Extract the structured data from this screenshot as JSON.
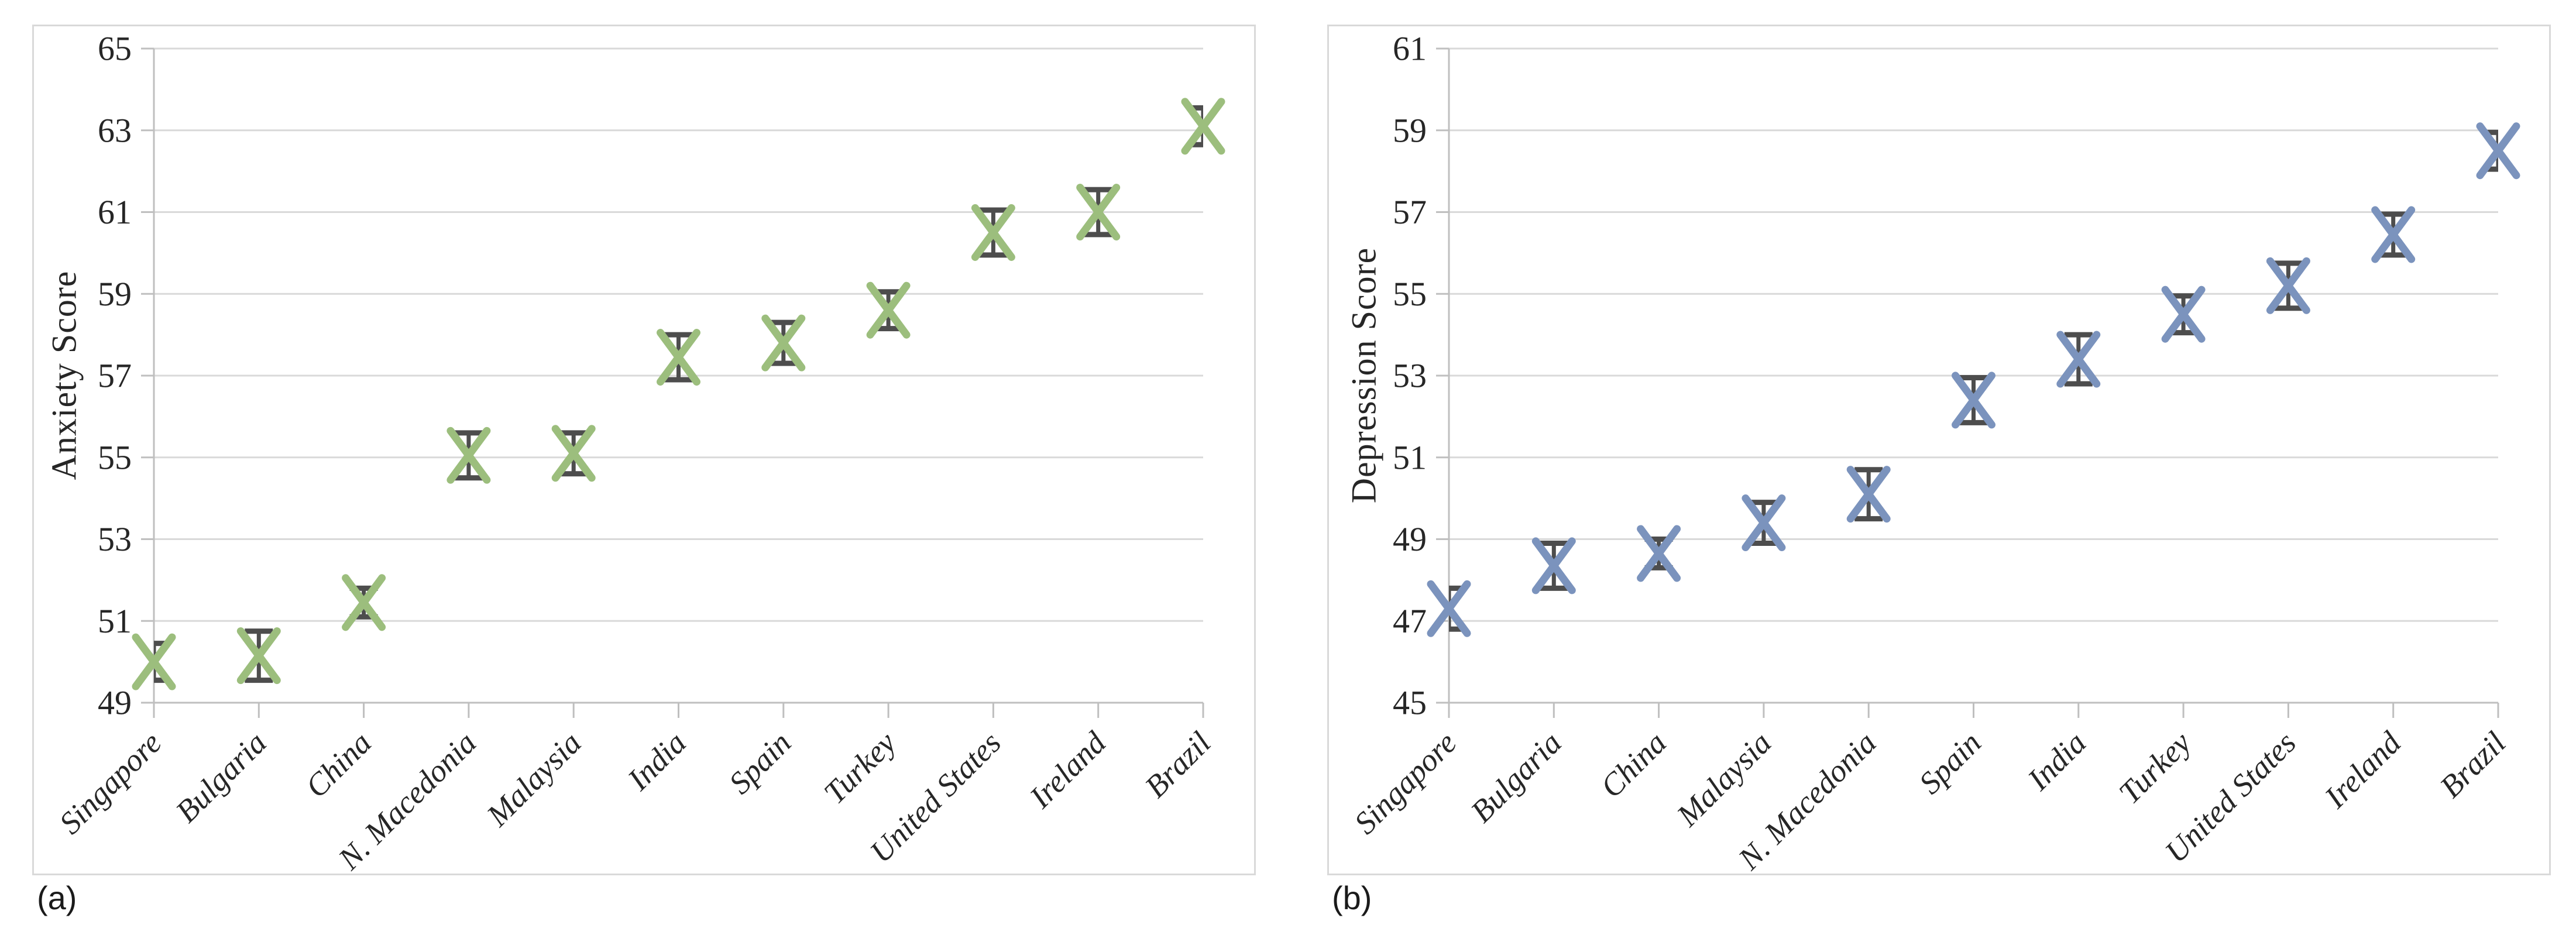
{
  "figure": {
    "panels": [
      {
        "caption": "(a)"
      },
      {
        "caption": "(b)"
      }
    ]
  },
  "chart_data": [
    {
      "type": "scatter",
      "panel": "a",
      "title": "",
      "xlabel": "",
      "ylabel": "Anxiety Score",
      "ylim": [
        49,
        65
      ],
      "ytick_step": 2,
      "grid": true,
      "legend_position": "none",
      "marker": "x-with-error-bars",
      "marker_color": "#9CBE7D",
      "error_color": "#4D4D4D",
      "categories": [
        "Singapore",
        "Bulgaria",
        "China",
        "N. Macedonia",
        "Malaysia",
        "India",
        "Spain",
        "Turkey",
        "United States",
        "Ireland",
        "Brazil"
      ],
      "values": [
        50.0,
        50.15,
        51.45,
        55.05,
        55.1,
        57.45,
        57.8,
        58.6,
        60.5,
        61.0,
        63.1
      ],
      "errors": [
        0.45,
        0.6,
        0.35,
        0.55,
        0.5,
        0.55,
        0.5,
        0.45,
        0.55,
        0.55,
        0.45
      ]
    },
    {
      "type": "scatter",
      "panel": "b",
      "title": "",
      "xlabel": "",
      "ylabel": "Depression Score",
      "ylim": [
        45,
        61
      ],
      "ytick_step": 2,
      "grid": true,
      "legend_position": "none",
      "marker": "x-with-error-bars",
      "marker_color": "#7B93BD",
      "error_color": "#4D4D4D",
      "categories": [
        "Singapore",
        "Bulgaria",
        "China",
        "Malaysia",
        "N. Macedonia",
        "Spain",
        "India",
        "Turkey",
        "United States",
        "Ireland",
        "Brazil"
      ],
      "values": [
        47.3,
        48.35,
        48.65,
        49.4,
        50.1,
        52.4,
        53.4,
        54.5,
        55.2,
        56.45,
        58.5
      ],
      "errors": [
        0.5,
        0.55,
        0.35,
        0.5,
        0.6,
        0.55,
        0.6,
        0.45,
        0.55,
        0.5,
        0.45
      ]
    }
  ]
}
